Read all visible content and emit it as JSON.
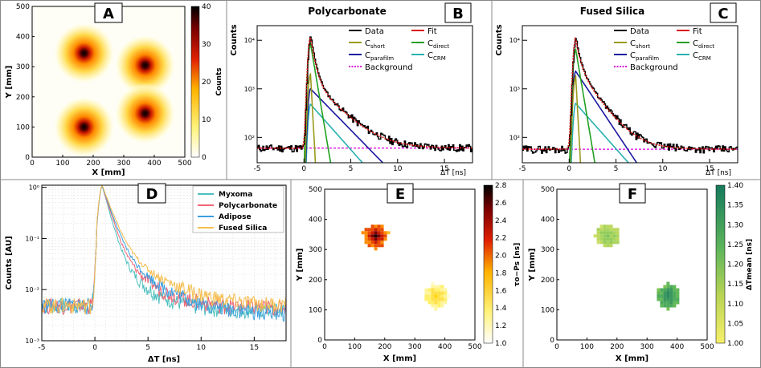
{
  "chart_data": [
    {
      "panel": "A",
      "type": "heatmap",
      "xlabel": "X [mm]",
      "ylabel": "Y [mm]",
      "xlim": [
        0,
        500
      ],
      "ylim": [
        0,
        500
      ],
      "xticks": [
        "0",
        "100",
        "200",
        "300",
        "400",
        "500"
      ],
      "yticks": [
        "0",
        "100",
        "200",
        "300",
        "400",
        "500"
      ],
      "colorbar": {
        "label": "Counts",
        "ticks": [
          "0",
          "10",
          "20",
          "30",
          "40"
        ],
        "range": [
          0,
          40
        ]
      },
      "sources": [
        {
          "x": 170,
          "y": 345,
          "peak": 40
        },
        {
          "x": 370,
          "y": 305,
          "peak": 38
        },
        {
          "x": 170,
          "y": 100,
          "peak": 40
        },
        {
          "x": 370,
          "y": 145,
          "peak": 38
        }
      ]
    },
    {
      "panel": "B",
      "type": "line",
      "title": "Polycarbonate",
      "xlabel": "ΔT [ns]",
      "ylabel": "Counts",
      "xlim": [
        -5,
        18
      ],
      "ylog": true,
      "ylim": [
        30,
        20000
      ],
      "xticks": [
        "-5",
        "0",
        "5",
        "10",
        "15"
      ],
      "yticks": [
        "10²",
        "10³",
        "10⁴"
      ],
      "legend": [
        "Data",
        "Fit",
        "C_short",
        "C_direct",
        "C_parafilm",
        "C_CRM",
        "Background"
      ],
      "background": 60,
      "components": {
        "short": {
          "amp": 2000,
          "tau": 0.125
        },
        "direct": {
          "amp": 8500,
          "tau": 0.38
        },
        "parafilm": {
          "amp": 1000,
          "tau": 2.2
        },
        "crm": {
          "amp": 480,
          "tau": 2.0
        }
      }
    },
    {
      "panel": "C",
      "type": "line",
      "title": "Fused Silica",
      "xlabel": "ΔT [ns]",
      "ylabel": "Counts",
      "xlim": [
        -5,
        18
      ],
      "ylog": true,
      "ylim": [
        30,
        20000
      ],
      "xticks": [
        "-5",
        "0",
        "5",
        "10",
        "15"
      ],
      "yticks": [
        "10²",
        "10³",
        "10⁴"
      ],
      "legend": [
        "Data",
        "Fit",
        "C_short",
        "C_direct",
        "C_parafilm",
        "C_CRM",
        "Background"
      ],
      "background": 57,
      "components": {
        "short": {
          "amp": 1800,
          "tau": 0.125
        },
        "direct": {
          "amp": 6500,
          "tau": 0.38
        },
        "parafilm": {
          "amp": 2300,
          "tau": 1.5
        },
        "crm": {
          "amp": 500,
          "tau": 2.0
        }
      }
    },
    {
      "panel": "D",
      "type": "line",
      "xlabel": "ΔT [ns]",
      "ylabel": "Counts [AU]",
      "xlim": [
        -5,
        18
      ],
      "ylog": true,
      "ylim": [
        0.001,
        1.1
      ],
      "xticks": [
        "-5",
        "0",
        "5",
        "10",
        "15"
      ],
      "yticks": [
        "10⁻³",
        "10⁻²",
        "10⁻¹",
        "10⁰"
      ],
      "series": [
        {
          "name": "Myxoma",
          "color": "#4dbfbf",
          "tail": 0.004
        },
        {
          "name": "Polycarbonate",
          "color": "#ee6677",
          "tail": 0.0045
        },
        {
          "name": "Adipose",
          "color": "#3b9fdf",
          "tail": 0.0035
        },
        {
          "name": "Fused Silica",
          "color": "#f5bd4f",
          "tail": 0.005
        }
      ]
    },
    {
      "panel": "E",
      "type": "heatmap",
      "xlabel": "X [mm]",
      "ylabel": "Y [mm]",
      "xlim": [
        0,
        500
      ],
      "ylim": [
        0,
        500
      ],
      "xticks": [
        "0",
        "100",
        "200",
        "300",
        "400",
        "500"
      ],
      "yticks": [
        "0",
        "100",
        "200",
        "300",
        "400",
        "500"
      ],
      "colorbar": {
        "label": "τo−Ps [ns]",
        "ticks": [
          "1.0",
          "1.2",
          "1.4",
          "1.6",
          "1.8",
          "2.0",
          "2.2",
          "2.4",
          "2.6",
          "2.8"
        ],
        "range": [
          1.0,
          2.8
        ]
      },
      "sources": [
        {
          "x": 170,
          "y": 345,
          "value": 2.4
        },
        {
          "x": 370,
          "y": 145,
          "value": 1.5
        }
      ]
    },
    {
      "panel": "F",
      "type": "heatmap",
      "xlabel": "X [mm]",
      "ylabel": "Y [mm]",
      "xlim": [
        0,
        500
      ],
      "ylim": [
        0,
        500
      ],
      "xticks": [
        "0",
        "100",
        "200",
        "300",
        "400",
        "500"
      ],
      "yticks": [
        "0",
        "100",
        "200",
        "300",
        "400",
        "500"
      ],
      "colorbar": {
        "label": "ΔTmean [ns]",
        "ticks": [
          "1.00",
          "1.05",
          "1.10",
          "1.15",
          "1.20",
          "1.25",
          "1.30",
          "1.35",
          "1.40"
        ],
        "range": [
          1.0,
          1.4
        ]
      },
      "sources": [
        {
          "x": 170,
          "y": 345,
          "value": 1.24
        },
        {
          "x": 370,
          "y": 145,
          "value": 1.33
        }
      ]
    }
  ],
  "labels": {
    "A": "A",
    "B": "B",
    "C": "C",
    "D": "D",
    "E": "E",
    "F": "F"
  },
  "colors": {
    "short": "#9a9a1e",
    "direct": "#22a022",
    "parafilm": "#1a1aa0",
    "crm": "#2ab0b0",
    "fit": "#dd1111",
    "background": "#dd00dd",
    "data": "#000000"
  }
}
